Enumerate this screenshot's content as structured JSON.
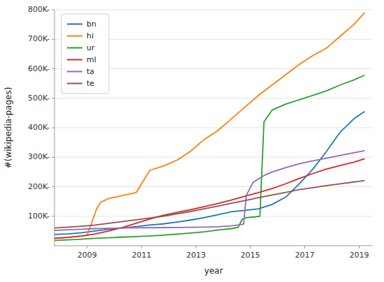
{
  "chart_data": {
    "type": "line",
    "xlabel": "year",
    "ylabel": "#(wikipedia-pages)",
    "series": [
      {
        "name": "bn",
        "color": "#1f77b4",
        "x": [
          2007.8,
          2008.3,
          2008.8,
          2009.3,
          2009.8,
          2010.3,
          2010.8,
          2011.3,
          2011.8,
          2012.3,
          2012.8,
          2013.3,
          2013.8,
          2014.3,
          2014.8,
          2015.3,
          2015.8,
          2016.3,
          2016.8,
          2017.3,
          2017.8,
          2018.3,
          2018.8,
          2019.2
        ],
        "values": [
          38000,
          40000,
          44000,
          50000,
          56000,
          60000,
          65000,
          70000,
          74000,
          80000,
          87000,
          95000,
          105000,
          115000,
          120000,
          125000,
          140000,
          165000,
          210000,
          260000,
          320000,
          385000,
          430000,
          455000
        ]
      },
      {
        "name": "hi",
        "color": "#ff7f0e",
        "x": [
          2007.8,
          2008.3,
          2009.0,
          2009.35,
          2009.5,
          2009.8,
          2010.3,
          2010.8,
          2011.3,
          2011.8,
          2012.3,
          2012.8,
          2013.3,
          2013.8,
          2014.3,
          2014.8,
          2015.3,
          2015.8,
          2016.3,
          2016.8,
          2017.3,
          2017.8,
          2018.3,
          2018.8,
          2019.2
        ],
        "values": [
          25000,
          28000,
          35000,
          125000,
          148000,
          160000,
          170000,
          180000,
          255000,
          270000,
          290000,
          320000,
          360000,
          390000,
          430000,
          470000,
          510000,
          545000,
          580000,
          615000,
          645000,
          670000,
          710000,
          750000,
          790000
        ]
      },
      {
        "name": "ur",
        "color": "#2ca02c",
        "x": [
          2007.8,
          2008.3,
          2008.8,
          2009.3,
          2009.8,
          2010.3,
          2010.8,
          2011.3,
          2011.8,
          2012.3,
          2012.8,
          2013.3,
          2013.8,
          2014.3,
          2014.55,
          2014.7,
          2014.85,
          2015.1,
          2015.35,
          2015.5,
          2015.8,
          2016.3,
          2016.8,
          2017.3,
          2017.8,
          2018.3,
          2018.8,
          2019.2
        ],
        "values": [
          18000,
          20000,
          22000,
          25000,
          27000,
          29000,
          31000,
          33000,
          36000,
          39000,
          43000,
          47000,
          53000,
          58000,
          62000,
          90000,
          95000,
          97000,
          100000,
          420000,
          460000,
          480000,
          495000,
          510000,
          525000,
          545000,
          562000,
          578000
        ]
      },
      {
        "name": "ml",
        "color": "#d62728",
        "x": [
          2007.8,
          2008.3,
          2008.8,
          2009.3,
          2009.8,
          2010.3,
          2010.8,
          2011.3,
          2011.8,
          2012.3,
          2012.8,
          2013.3,
          2013.8,
          2014.3,
          2014.8,
          2015.3,
          2015.8,
          2016.3,
          2016.8,
          2017.3,
          2017.8,
          2018.3,
          2018.8,
          2019.2
        ],
        "values": [
          25000,
          28000,
          33000,
          40000,
          50000,
          62000,
          76000,
          90000,
          103000,
          113000,
          122000,
          132000,
          143000,
          155000,
          168000,
          180000,
          194000,
          210000,
          228000,
          245000,
          260000,
          272000,
          283000,
          295000
        ]
      },
      {
        "name": "ta",
        "color": "#9467bd",
        "x": [
          2007.8,
          2008.3,
          2008.8,
          2009.3,
          2009.8,
          2010.3,
          2010.8,
          2011.3,
          2011.8,
          2012.3,
          2012.8,
          2013.3,
          2013.8,
          2014.3,
          2014.75,
          2014.85,
          2015.1,
          2015.5,
          2015.8,
          2016.3,
          2016.8,
          2017.3,
          2017.8,
          2018.3,
          2018.8,
          2019.2
        ],
        "values": [
          52000,
          54000,
          56000,
          58000,
          59000,
          60000,
          60500,
          61000,
          61500,
          62000,
          62500,
          63000,
          64000,
          67000,
          73000,
          170000,
          215000,
          238000,
          250000,
          265000,
          278000,
          288000,
          297000,
          306000,
          315000,
          322000
        ]
      },
      {
        "name": "te",
        "color": "#8c564b",
        "x": [
          2007.8,
          2008.3,
          2008.8,
          2009.3,
          2009.8,
          2010.3,
          2010.8,
          2011.3,
          2011.8,
          2012.3,
          2012.8,
          2013.3,
          2013.8,
          2014.3,
          2014.8,
          2015.3,
          2015.8,
          2016.3,
          2016.8,
          2017.3,
          2017.8,
          2018.3,
          2018.8,
          2019.2
        ],
        "values": [
          60000,
          63000,
          66000,
          70000,
          76000,
          82000,
          88000,
          94000,
          100000,
          108000,
          116000,
          125000,
          134000,
          144000,
          153000,
          163000,
          172000,
          181000,
          190000,
          197000,
          204000,
          210000,
          216000,
          221000
        ]
      }
    ],
    "xlim": [
      2007.8,
      2019.5
    ],
    "ylim": [
      0,
      800000
    ],
    "xticks": [
      2009,
      2011,
      2013,
      2015,
      2017,
      2019
    ],
    "yticks": [
      {
        "value": 100000,
        "label": "100K-"
      },
      {
        "value": 200000,
        "label": "200K-"
      },
      {
        "value": 300000,
        "label": "300K-"
      },
      {
        "value": 400000,
        "label": "400K-"
      },
      {
        "value": 500000,
        "label": "500K-"
      },
      {
        "value": 600000,
        "label": "600K-"
      },
      {
        "value": 700000,
        "label": "700K-"
      },
      {
        "value": 800000,
        "label": "800K-"
      }
    ],
    "grid": true,
    "legend": "upper left"
  }
}
